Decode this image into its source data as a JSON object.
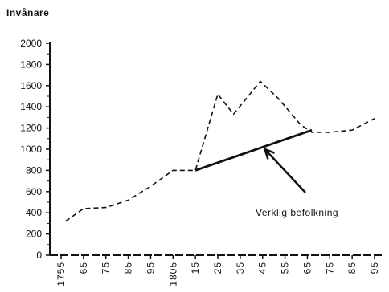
{
  "chart_data": {
    "type": "line",
    "ylabel": "Invånare",
    "y_ticks": [
      "0",
      "200",
      "400",
      "600",
      "800",
      "1000",
      "1200",
      "1400",
      "1600",
      "1800",
      "2000"
    ],
    "ylim": [
      0,
      2000
    ],
    "x_ticks": [
      "1755",
      "65",
      "75",
      "85",
      "95",
      "1805",
      "15",
      "25",
      "35",
      "45",
      "55",
      "65",
      "75",
      "85",
      "95"
    ],
    "x_years": [
      1755,
      1765,
      1775,
      1785,
      1795,
      1805,
      1815,
      1825,
      1835,
      1845,
      1855,
      1865,
      1875,
      1885,
      1895
    ],
    "grid": false,
    "series": [
      {
        "style": "dashed",
        "x": [
          1757,
          1765,
          1775,
          1785,
          1795,
          1805,
          1815,
          1825,
          1832,
          1844,
          1852,
          1862,
          1867,
          1875,
          1885,
          1895
        ],
        "y": [
          320,
          440,
          450,
          520,
          650,
          800,
          800,
          1520,
          1330,
          1640,
          1480,
          1230,
          1160,
          1160,
          1180,
          1290
        ]
      },
      {
        "name": "Verklig befolkning",
        "style": "solid",
        "x": [
          1815,
          1867
        ],
        "y": [
          800,
          1180
        ]
      }
    ],
    "annotation": {
      "text": "Verklig befolkning",
      "points_to": {
        "x": 1846,
        "y": 1000
      }
    }
  }
}
